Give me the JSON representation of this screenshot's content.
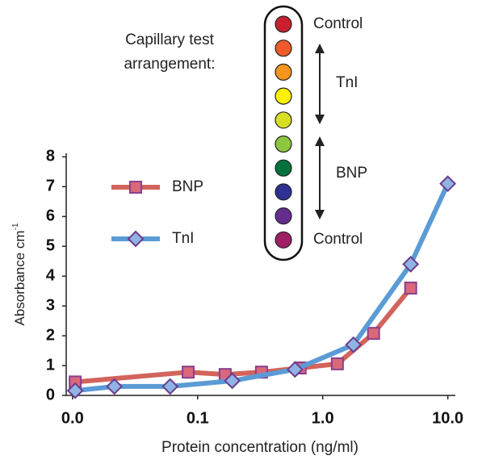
{
  "chart_data": {
    "type": "line",
    "x_label": "Protein concentration (ng/ml)",
    "y_label": "Absorbance cm",
    "y_label_sup": "-1",
    "xscale": "log",
    "xlim": [
      0.0089,
      11.5
    ],
    "xticks": [
      {
        "value": 0.01,
        "label": "0.0"
      },
      0.1,
      {
        "value": 1,
        "label": "1.0"
      },
      {
        "value": 10,
        "label": "10.0"
      }
    ],
    "ylim": [
      0,
      8.2
    ],
    "yticks": [
      0,
      1,
      2,
      3,
      4,
      5,
      6,
      7,
      8
    ],
    "grid": false,
    "legend": "left",
    "series": [
      {
        "name": "BNP",
        "color": "#d2645c",
        "marker": "square",
        "marker_color": "#d9687a",
        "x": [
          0.0105,
          0.084,
          0.166,
          0.324,
          0.66,
          1.31,
          2.55,
          5.05
        ],
        "values": [
          0.45,
          0.78,
          0.7,
          0.78,
          0.92,
          1.06,
          2.08,
          3.6
        ]
      },
      {
        "name": "TnI",
        "color": "#5b9bd5",
        "marker": "diamond",
        "marker_color": "#8fb4e3",
        "x": [
          0.0105,
          0.0216,
          0.0603,
          0.189,
          0.6,
          1.76,
          5.05,
          10
        ],
        "values": [
          0.16,
          0.3,
          0.3,
          0.49,
          0.87,
          1.7,
          4.4,
          7.1
        ]
      }
    ],
    "capillary": {
      "title": [
        "Capillary test",
        "arrangement:"
      ],
      "colors": [
        "#c8202f",
        "#ef5a2a",
        "#f7941d",
        "#fff200",
        "#d7df23",
        "#8dc63f",
        "#00723f",
        "#2e3192",
        "#662d91",
        "#9e1f63"
      ],
      "labels": [
        "Control",
        "TnI",
        "BNP",
        "Control"
      ]
    }
  }
}
